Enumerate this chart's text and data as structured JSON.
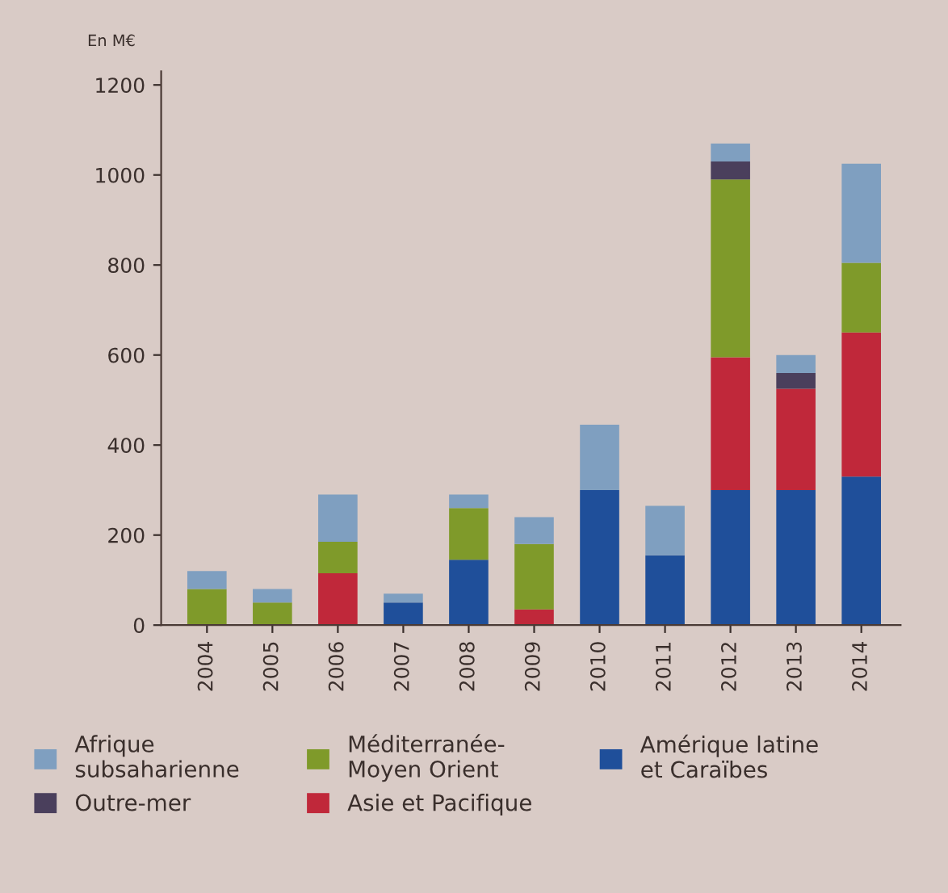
{
  "chart_data": {
    "type": "bar",
    "stacked": true,
    "ylabel": "En M€",
    "categories": [
      "2004",
      "2005",
      "2006",
      "2007",
      "2008",
      "2009",
      "2010",
      "2011",
      "2012",
      "2013",
      "2014"
    ],
    "series": [
      {
        "name": "Amérique latine\net Caraïbes",
        "color": "#1f4f9a",
        "values": [
          0,
          0,
          0,
          50,
          145,
          0,
          300,
          155,
          300,
          300,
          330
        ]
      },
      {
        "name": "Asie et Pacifique",
        "color": "#c0283a",
        "values": [
          0,
          0,
          115,
          0,
          0,
          35,
          0,
          0,
          295,
          225,
          320
        ]
      },
      {
        "name": "Méditerranée-\nMoyen Orient",
        "color": "#7f9a2a",
        "values": [
          80,
          50,
          70,
          0,
          115,
          145,
          0,
          0,
          395,
          0,
          155
        ]
      },
      {
        "name": "Outre-mer",
        "color": "#4a3f5c",
        "values": [
          0,
          0,
          0,
          0,
          0,
          0,
          0,
          0,
          40,
          35,
          0
        ]
      },
      {
        "name": "Afrique\nsubsaharienne",
        "color": "#7f9fc0",
        "values": [
          40,
          30,
          105,
          20,
          30,
          60,
          145,
          110,
          40,
          40,
          220
        ]
      }
    ],
    "ylim": [
      0,
      1230
    ],
    "yticks": [
      0,
      200,
      400,
      600,
      800,
      1000,
      1200
    ],
    "grid": false,
    "legend": "bottom"
  }
}
